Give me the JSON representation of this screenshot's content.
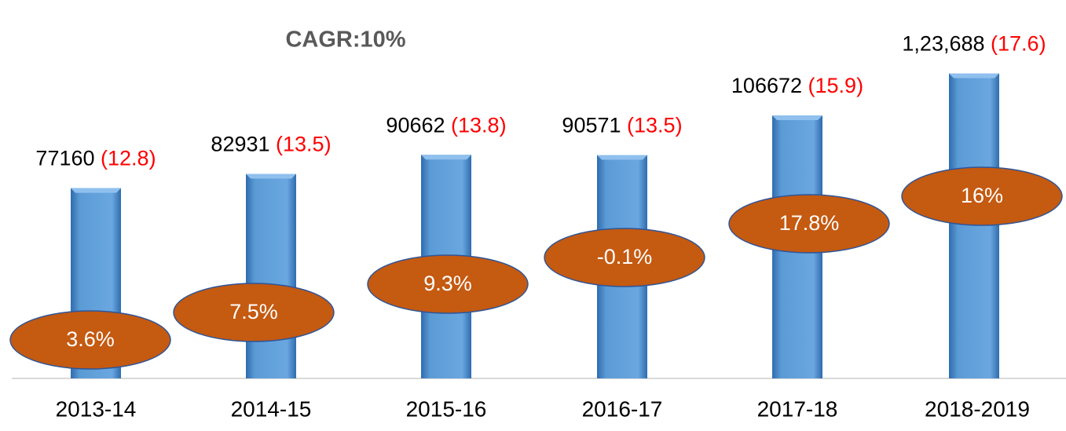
{
  "chart_data": {
    "type": "bar",
    "title": "CAGR:10%",
    "categories": [
      "2013-14",
      "2014-15",
      "2015-16",
      "2016-17",
      "2017-18",
      "2018-2019"
    ],
    "values": [
      77160,
      82931,
      90662,
      90571,
      106672,
      123688
    ],
    "value_labels": [
      "77160",
      "82931",
      "90662",
      "90571",
      "106672",
      "1,23,688"
    ],
    "share_labels": [
      "(12.8)",
      "(13.5)",
      "(13.8)",
      "(13.5)",
      "(15.9)",
      "(17.6)"
    ],
    "growth_labels": [
      "3.6%",
      "7.5%",
      "9.3%",
      "-0.1%",
      "17.8%",
      "16%"
    ],
    "color": "#5b9bd5",
    "ylim": [
      0,
      135000
    ]
  }
}
